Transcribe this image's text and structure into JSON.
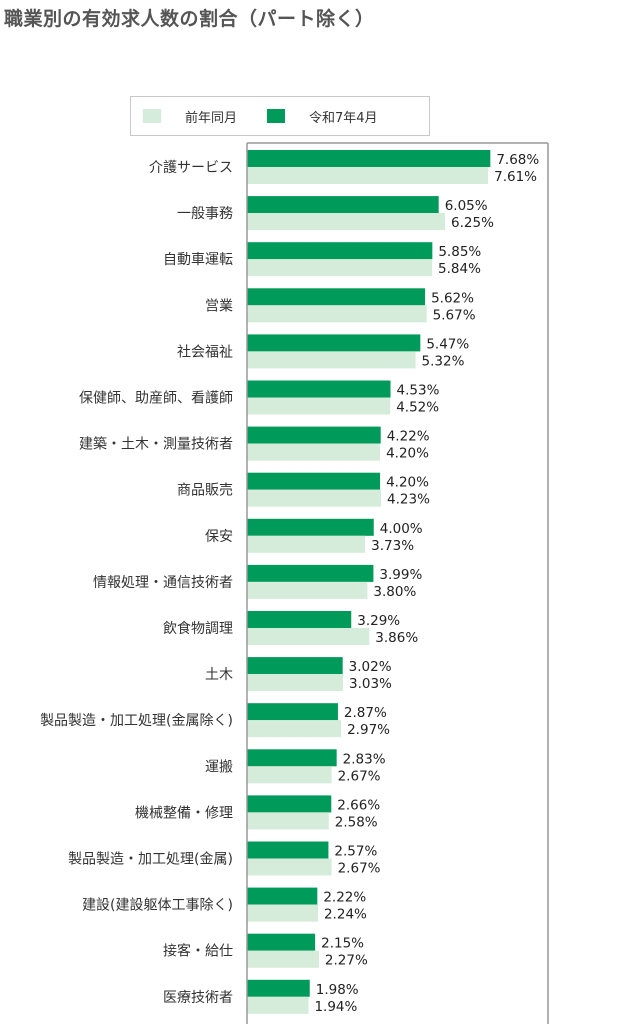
{
  "colors": {
    "current": "#009a5a",
    "previous": "#d4ecd9",
    "frame": "#999999"
  },
  "chart_data": {
    "type": "bar",
    "orientation": "horizontal",
    "title": "職業別の有効求人数の割合（パート除く）",
    "legend_position": "top",
    "grid": false,
    "xlim": [
      0,
      9.5
    ],
    "categories": [
      "介護サービス",
      "一般事務",
      "自動車運転",
      "営業",
      "社会福祉",
      "保健師、助産師、看護師",
      "建築・土木・測量技術者",
      "商品販売",
      "保安",
      "情報処理・通信技術者",
      "飲食物調理",
      "土木",
      "製品製造・加工処理(金属除く)",
      "運搬",
      "機械整備・修理",
      "製品製造・加工処理(金属)",
      "建設(建設躯体工事除く)",
      "接客・給仕",
      "医療技術者"
    ],
    "series": [
      {
        "name": "令和7年4月",
        "values": [
          7.68,
          6.05,
          5.85,
          5.62,
          5.47,
          4.53,
          4.22,
          4.2,
          4.0,
          3.99,
          3.29,
          3.02,
          2.87,
          2.83,
          2.66,
          2.57,
          2.22,
          2.15,
          1.98
        ],
        "labels": [
          "7.68%",
          "6.05%",
          "5.85%",
          "5.62%",
          "5.47%",
          "4.53%",
          "4.22%",
          "4.20%",
          "4.00%",
          "3.99%",
          "3.29%",
          "3.02%",
          "2.87%",
          "2.83%",
          "2.66%",
          "2.57%",
          "2.22%",
          "2.15%",
          "1.98%"
        ]
      },
      {
        "name": "前年同月",
        "values": [
          7.61,
          6.25,
          5.84,
          5.67,
          5.32,
          4.52,
          4.2,
          4.23,
          3.73,
          3.8,
          3.86,
          3.03,
          2.97,
          2.67,
          2.58,
          2.67,
          2.24,
          2.27,
          1.94
        ],
        "labels": [
          "7.61%",
          "6.25%",
          "5.84%",
          "5.67%",
          "5.32%",
          "4.52%",
          "4.20%",
          "4.23%",
          "3.73%",
          "3.80%",
          "3.86%",
          "3.03%",
          "2.97%",
          "2.67%",
          "2.58%",
          "2.67%",
          "2.24%",
          "2.27%",
          "1.94%"
        ]
      }
    ]
  }
}
